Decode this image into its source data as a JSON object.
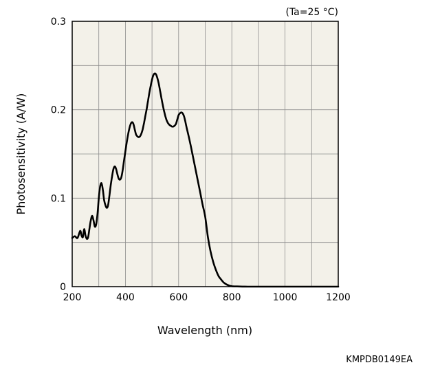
{
  "chart_data": {
    "type": "line",
    "title": "",
    "condition_note": "(Ta=25 °C)",
    "xlabel": "Wavelength (nm)",
    "ylabel": "Photosensitivity (A/W)",
    "figure_code": "KMPDB0149EA",
    "xlim": [
      200,
      1200
    ],
    "ylim": [
      0,
      0.3
    ],
    "x_ticks": [
      200,
      400,
      600,
      800,
      1000,
      1200
    ],
    "y_ticks": [
      0,
      0.1,
      0.2,
      0.3
    ],
    "y_tick_labels": [
      "0",
      "0.1",
      "0.2",
      "0.3"
    ],
    "grid": true,
    "plot_background": "#f3f1e9",
    "line_color": "#000000",
    "series": [
      {
        "x": [
          200,
          210,
          220,
          230,
          235,
          240,
          245,
          250,
          255,
          260,
          265,
          270,
          275,
          280,
          285,
          290,
          295,
          300,
          305,
          310,
          315,
          320,
          325,
          330,
          335,
          340,
          345,
          350,
          355,
          360,
          365,
          370,
          375,
          380,
          385,
          390,
          395,
          400,
          405,
          410,
          415,
          420,
          425,
          430,
          435,
          440,
          445,
          450,
          455,
          460,
          465,
          470,
          475,
          480,
          485,
          490,
          495,
          500,
          505,
          510,
          515,
          520,
          525,
          530,
          535,
          540,
          545,
          550,
          555,
          560,
          565,
          570,
          575,
          580,
          585,
          590,
          595,
          600,
          605,
          610,
          615,
          620,
          625,
          630,
          640,
          650,
          660,
          670,
          680,
          690,
          700,
          710,
          720,
          730,
          740,
          750,
          760,
          770,
          780,
          790,
          800,
          820,
          840,
          860,
          880,
          900,
          920,
          940,
          960,
          980,
          1000,
          1020,
          1040,
          1060,
          1080,
          1100,
          1120,
          1140,
          1160,
          1180,
          1200
        ],
        "y": [
          0.055,
          0.057,
          0.055,
          0.063,
          0.058,
          0.056,
          0.065,
          0.058,
          0.054,
          0.056,
          0.066,
          0.075,
          0.08,
          0.075,
          0.068,
          0.07,
          0.082,
          0.1,
          0.113,
          0.117,
          0.11,
          0.098,
          0.092,
          0.089,
          0.092,
          0.103,
          0.115,
          0.125,
          0.133,
          0.136,
          0.133,
          0.127,
          0.122,
          0.121,
          0.124,
          0.132,
          0.143,
          0.153,
          0.163,
          0.172,
          0.179,
          0.184,
          0.186,
          0.184,
          0.178,
          0.172,
          0.17,
          0.169,
          0.17,
          0.173,
          0.178,
          0.185,
          0.193,
          0.201,
          0.21,
          0.219,
          0.227,
          0.234,
          0.239,
          0.241,
          0.24,
          0.236,
          0.23,
          0.222,
          0.214,
          0.206,
          0.199,
          0.193,
          0.188,
          0.185,
          0.183,
          0.182,
          0.181,
          0.181,
          0.182,
          0.184,
          0.189,
          0.194,
          0.196,
          0.197,
          0.196,
          0.193,
          0.187,
          0.18,
          0.167,
          0.153,
          0.138,
          0.123,
          0.108,
          0.093,
          0.079,
          0.056,
          0.04,
          0.028,
          0.019,
          0.012,
          0.008,
          0.0045,
          0.0025,
          0.0012,
          0.0005,
          0.0002,
          0.0001,
          0.0,
          0.0,
          0.0,
          0.0,
          0.0,
          0.0,
          0.0,
          0.0,
          0.0,
          0.0,
          0.0,
          0.0,
          0.0,
          0.0,
          0.0,
          0.0,
          0.0,
          0.0
        ]
      }
    ]
  }
}
